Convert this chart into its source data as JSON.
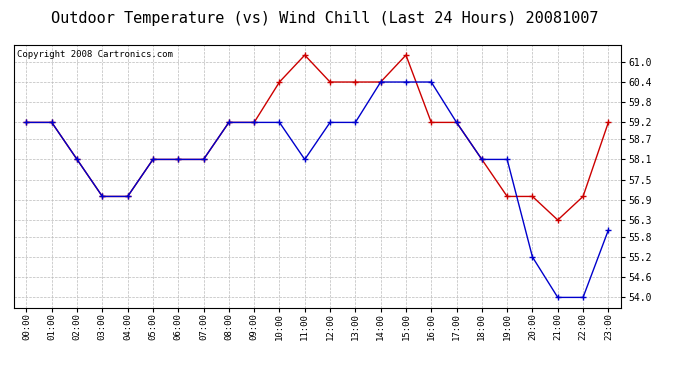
{
  "title": "Outdoor Temperature (vs) Wind Chill (Last 24 Hours) 20081007",
  "copyright": "Copyright 2008 Cartronics.com",
  "hours": [
    "00:00",
    "01:00",
    "02:00",
    "03:00",
    "04:00",
    "05:00",
    "06:00",
    "07:00",
    "08:00",
    "09:00",
    "10:00",
    "11:00",
    "12:00",
    "13:00",
    "14:00",
    "15:00",
    "16:00",
    "17:00",
    "18:00",
    "19:00",
    "20:00",
    "21:00",
    "22:00",
    "23:00"
  ],
  "temp": [
    59.2,
    59.2,
    58.1,
    57.0,
    57.0,
    58.1,
    58.1,
    58.1,
    59.2,
    59.2,
    60.4,
    61.2,
    60.4,
    60.4,
    60.4,
    61.2,
    59.2,
    59.2,
    58.1,
    57.0,
    57.0,
    56.3,
    57.0,
    59.2
  ],
  "wind_chill": [
    59.2,
    59.2,
    58.1,
    57.0,
    57.0,
    58.1,
    58.1,
    58.1,
    59.2,
    59.2,
    59.2,
    58.1,
    59.2,
    59.2,
    60.4,
    60.4,
    60.4,
    59.2,
    58.1,
    58.1,
    55.2,
    54.0,
    54.0,
    56.0
  ],
  "ylim_min": 53.7,
  "ylim_max": 61.5,
  "yticks": [
    54.0,
    54.6,
    55.2,
    55.8,
    56.3,
    56.9,
    57.5,
    58.1,
    58.7,
    59.2,
    59.8,
    60.4,
    61.0
  ],
  "temp_color": "#cc0000",
  "wind_chill_color": "#0000cc",
  "bg_color": "#ffffff",
  "grid_color": "#bbbbbb",
  "title_fontsize": 11,
  "copyright_fontsize": 6.5
}
